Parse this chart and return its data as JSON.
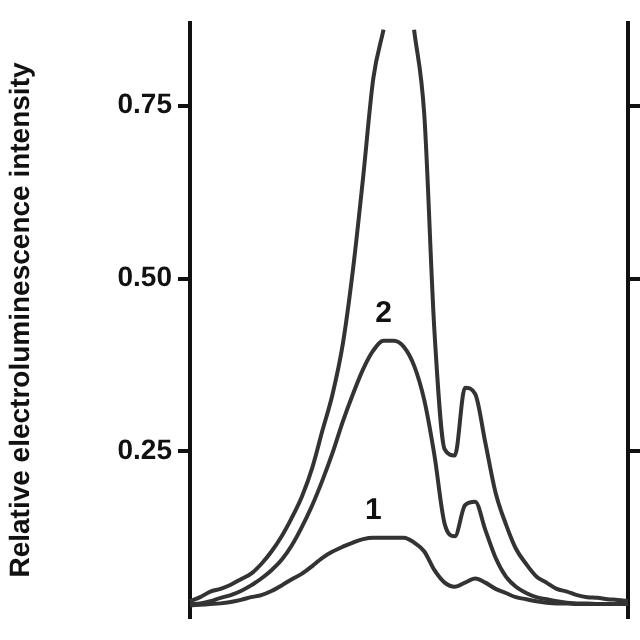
{
  "chart_data": {
    "type": "line",
    "ylabel": "Relative electroluminescence intensity",
    "categories": [
      null,
      null,
      null,
      null,
      null,
      null,
      null,
      null,
      null,
      null,
      null,
      null,
      null,
      null,
      null,
      null,
      null,
      null,
      null,
      null,
      null,
      null,
      null,
      null,
      null,
      null,
      null,
      null,
      null,
      null,
      null,
      null,
      null,
      null,
      null,
      null,
      null,
      null,
      null,
      null,
      null,
      null,
      null,
      null
    ],
    "series": [
      {
        "color": "#333333",
        "values": [
          0.033,
          0.039,
          0.047,
          0.051,
          0.057,
          0.065,
          0.073,
          0.087,
          0.105,
          0.127,
          0.154,
          0.185,
          0.226,
          0.28,
          0.333,
          0.405,
          0.513,
          0.647,
          0.79,
          0.86,
          null,
          null,
          0.86,
          0.737,
          0.423,
          0.253,
          0.244,
          0.342,
          0.333,
          0.262,
          0.19,
          0.145,
          0.109,
          0.087,
          0.069,
          0.06,
          0.051,
          0.047,
          0.042,
          0.039,
          0.038,
          0.036,
          0.035,
          0.033
        ]
      },
      {
        "name": "2",
        "color": "#333333",
        "values": [
          0.029,
          0.03,
          0.033,
          0.038,
          0.042,
          0.048,
          0.056,
          0.066,
          0.078,
          0.093,
          0.114,
          0.141,
          0.172,
          0.208,
          0.248,
          0.293,
          0.333,
          0.369,
          0.396,
          0.41,
          0.41,
          0.401,
          0.374,
          0.324,
          0.244,
          0.145,
          0.127,
          0.172,
          0.177,
          0.136,
          0.096,
          0.069,
          0.054,
          0.045,
          0.039,
          0.036,
          0.033,
          0.031,
          0.03,
          0.03,
          0.029,
          0.029,
          0.029,
          0.029
        ]
      },
      {
        "name": "1",
        "color": "#333333",
        "values": [
          0.027,
          0.028,
          0.029,
          0.03,
          0.032,
          0.035,
          0.039,
          0.042,
          0.048,
          0.056,
          0.065,
          0.073,
          0.084,
          0.096,
          0.105,
          0.112,
          0.118,
          0.123,
          0.125,
          0.125,
          0.125,
          0.125,
          0.118,
          0.105,
          0.078,
          0.06,
          0.054,
          0.06,
          0.066,
          0.06,
          0.051,
          0.045,
          0.039,
          0.036,
          0.033,
          0.031,
          0.03,
          0.03,
          0.029,
          0.029,
          0.029,
          0.029,
          0.029,
          0.029
        ]
      }
    ],
    "ylim": [
      0.01,
      0.87
    ],
    "yticks": [
      0.25,
      {
        "value": 0.5,
        "label": "0.50"
      },
      0.75
    ],
    "tick_labels": "y",
    "legend": false,
    "grid": false,
    "marker": "none",
    "line_style": "solid"
  }
}
